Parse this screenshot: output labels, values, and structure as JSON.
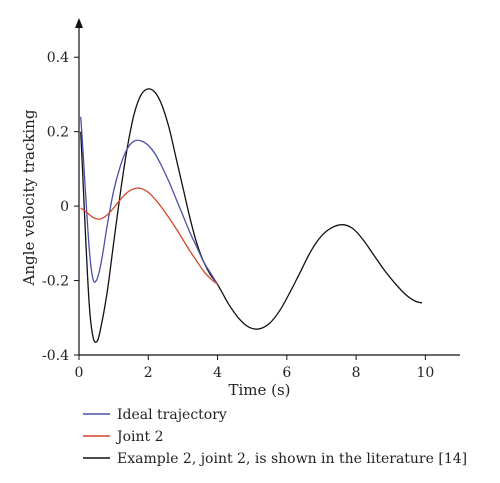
{
  "chart_data": {
    "type": "line",
    "title": "",
    "xlabel": "Time (s)",
    "ylabel": "Angle velocity tracking",
    "xlim": [
      0,
      11
    ],
    "ylim": [
      -0.4,
      0.5
    ],
    "xticks": [
      0,
      2,
      4,
      6,
      8,
      10
    ],
    "xtick_labels": [
      "0",
      "2",
      "4",
      "6",
      "8",
      "10"
    ],
    "yticks": [
      -0.4,
      -0.2,
      0,
      0.2,
      0.4
    ],
    "ytick_labels": [
      "-0.4",
      "-0.2",
      "0",
      "0.2",
      "0.4"
    ],
    "grid": false,
    "legend_position": "bottom",
    "series": [
      {
        "name": "Ideal trajectory",
        "color": "#4a4fa8",
        "x": [
          0.05,
          0.1,
          0.2,
          0.3,
          0.4,
          0.5,
          0.6,
          0.7,
          0.8,
          1.0,
          1.2,
          1.4,
          1.6,
          1.8,
          2.0,
          2.2,
          2.4,
          2.6,
          2.8,
          3.0,
          3.2,
          3.4,
          3.6,
          3.8,
          4.0
        ],
        "y": [
          0.24,
          0.17,
          0.02,
          -0.12,
          -0.195,
          -0.2,
          -0.17,
          -0.12,
          -0.06,
          0.04,
          0.11,
          0.155,
          0.175,
          0.175,
          0.163,
          0.14,
          0.105,
          0.065,
          0.02,
          -0.025,
          -0.07,
          -0.11,
          -0.15,
          -0.18,
          -0.21
        ]
      },
      {
        "name": "Joint 2",
        "color": "#d4462a",
        "x": [
          0.05,
          0.2,
          0.4,
          0.6,
          0.8,
          1.0,
          1.2,
          1.4,
          1.6,
          1.8,
          2.0,
          2.2,
          2.4,
          2.6,
          2.8,
          3.0,
          3.2,
          3.4,
          3.6,
          3.8,
          4.0
        ],
        "y": [
          -0.005,
          -0.015,
          -0.03,
          -0.035,
          -0.025,
          -0.005,
          0.018,
          0.037,
          0.047,
          0.047,
          0.037,
          0.018,
          -0.005,
          -0.032,
          -0.06,
          -0.09,
          -0.12,
          -0.148,
          -0.175,
          -0.195,
          -0.21
        ]
      },
      {
        "name": "Example 2, joint 2, is shown in the literature [14]",
        "color": "#111111",
        "x": [
          0.05,
          0.1,
          0.2,
          0.3,
          0.4,
          0.5,
          0.6,
          0.8,
          1.0,
          1.2,
          1.4,
          1.6,
          1.8,
          2.0,
          2.2,
          2.4,
          2.6,
          2.8,
          3.0,
          3.2,
          3.4,
          3.6,
          3.8,
          4.0,
          4.3,
          4.6,
          4.9,
          5.2,
          5.5,
          5.8,
          6.1,
          6.4,
          6.7,
          7.0,
          7.3,
          7.6,
          7.9,
          8.2,
          8.5,
          8.8,
          9.1,
          9.4,
          9.7,
          9.9
        ],
        "y": [
          0.2,
          0.1,
          -0.1,
          -0.27,
          -0.35,
          -0.365,
          -0.34,
          -0.24,
          -0.1,
          0.04,
          0.16,
          0.25,
          0.3,
          0.315,
          0.305,
          0.27,
          0.21,
          0.13,
          0.05,
          -0.03,
          -0.1,
          -0.15,
          -0.185,
          -0.21,
          -0.26,
          -0.3,
          -0.325,
          -0.33,
          -0.315,
          -0.28,
          -0.23,
          -0.175,
          -0.12,
          -0.08,
          -0.058,
          -0.05,
          -0.06,
          -0.09,
          -0.13,
          -0.17,
          -0.205,
          -0.235,
          -0.255,
          -0.26
        ]
      }
    ]
  }
}
